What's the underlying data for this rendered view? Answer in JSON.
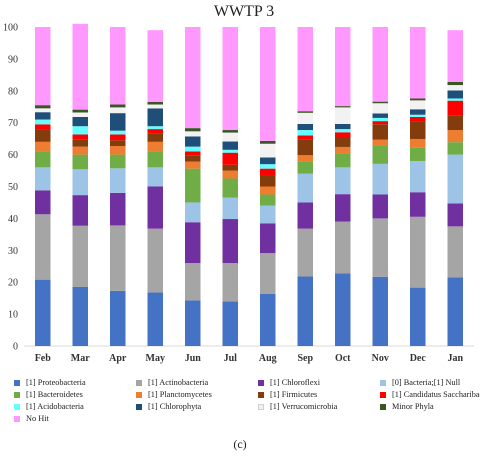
{
  "chart_data": {
    "type": "bar",
    "stacked": true,
    "title": "WWTP 3",
    "xlabel": "",
    "ylabel": "",
    "ylim": [
      0,
      100
    ],
    "yticks": [
      0,
      10,
      20,
      30,
      40,
      50,
      60,
      70,
      80,
      90,
      100
    ],
    "grid": false,
    "legend_position": "bottom",
    "categories": [
      "Feb",
      "Mar",
      "Apr",
      "May",
      "Jun",
      "Jul",
      "Aug",
      "Sep",
      "Oct",
      "Nov",
      "Dec",
      "Jan"
    ],
    "series": [
      {
        "name": "[1] Proteobacteria",
        "color": "#4472c4",
        "values": [
          20.8,
          18.5,
          17.3,
          16.8,
          14.3,
          14.0,
          16.3,
          21.8,
          22.8,
          21.7,
          18.3,
          21.5
        ]
      },
      {
        "name": "[1] Actinobacteria",
        "color": "#a5a5a5",
        "values": [
          20.5,
          19.2,
          20.5,
          20.0,
          11.7,
          12.0,
          12.8,
          15.0,
          16.2,
          18.3,
          22.2,
          16.0
        ]
      },
      {
        "name": "[1] Chloroflexi",
        "color": "#7030a0",
        "values": [
          7.5,
          9.6,
          10.2,
          13.2,
          12.8,
          13.8,
          9.3,
          8.2,
          8.6,
          7.5,
          7.7,
          7.2
        ]
      },
      {
        "name": "[0] Bacteria;[1] Null",
        "color": "#9dc3e6",
        "values": [
          7.2,
          8.1,
          7.7,
          6.0,
          6.2,
          6.7,
          5.6,
          9.0,
          8.4,
          9.6,
          9.8,
          15.3
        ]
      },
      {
        "name": "[1] Bacteroidetes",
        "color": "#70ad47",
        "values": [
          5.0,
          4.6,
          4.3,
          5.0,
          10.6,
          6.0,
          3.5,
          3.7,
          4.2,
          5.6,
          4.3,
          3.9
        ]
      },
      {
        "name": "[1] Planctomycetes",
        "color": "#ed7d31",
        "values": [
          3.0,
          2.5,
          2.7,
          3.0,
          2.2,
          2.5,
          2.5,
          2.1,
          2.2,
          2.0,
          2.6,
          3.8
        ]
      },
      {
        "name": "[1] Firmicutes",
        "color": "#843c0c",
        "values": [
          4.0,
          2.3,
          1.8,
          2.5,
          2.0,
          1.8,
          3.3,
          5.0,
          2.8,
          4.8,
          5.6,
          4.6
        ]
      },
      {
        "name": "[1] Candidatus Saccharibacteria",
        "color": "#ff0000",
        "values": [
          1.5,
          1.5,
          1.8,
          1.5,
          1.2,
          3.8,
          2.3,
          1.2,
          1.8,
          1.0,
          1.3,
          4.6
        ]
      },
      {
        "name": "[1] Acidobacteria",
        "color": "#66ffff",
        "values": [
          1.5,
          2.6,
          1.2,
          0.9,
          1.5,
          0.9,
          1.4,
          1.7,
          1.0,
          1.0,
          0.7,
          0.7
        ]
      },
      {
        "name": "[1] Chlorophyta",
        "color": "#1f4e79",
        "values": [
          2.3,
          2.9,
          5.5,
          5.6,
          3.2,
          2.6,
          2.1,
          1.9,
          1.6,
          1.4,
          1.7,
          2.5
        ]
      },
      {
        "name": "[1] Verrucomicrobia",
        "color": "#f2f2f2",
        "values": [
          1.2,
          1.4,
          1.8,
          1.2,
          1.6,
          2.8,
          4.3,
          3.5,
          5.2,
          3.2,
          2.8,
          1.7
        ]
      },
      {
        "name": "Minor Phyla",
        "color": "#385723",
        "values": [
          1.0,
          0.9,
          0.9,
          0.8,
          1.0,
          0.8,
          0.9,
          0.5,
          0.4,
          0.5,
          0.6,
          1.0
        ]
      },
      {
        "name": "No Hit",
        "color": "#ff99ff",
        "values": [
          24.5,
          26.9,
          24.3,
          22.5,
          31.7,
          32.3,
          35.7,
          26.4,
          24.8,
          23.4,
          22.4,
          16.2
        ]
      }
    ]
  },
  "caption": "(c)"
}
